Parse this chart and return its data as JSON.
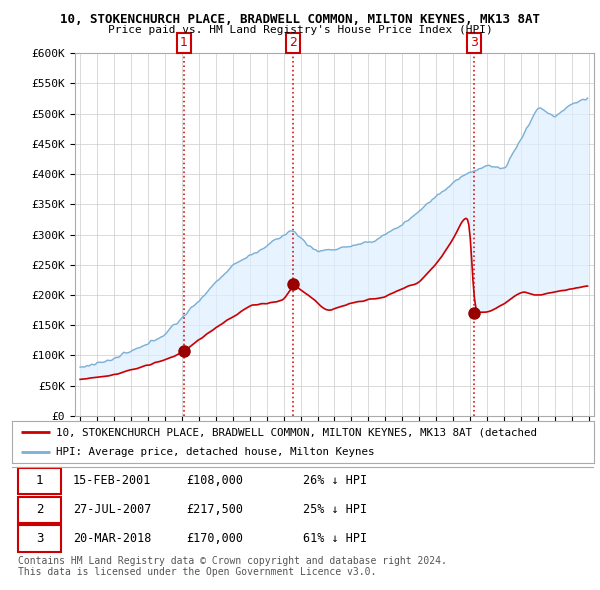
{
  "title_line1": "10, STOKENCHURCH PLACE, BRADWELL COMMON, MILTON KEYNES, MK13 8AT",
  "title_line2": "Price paid vs. HM Land Registry's House Price Index (HPI)",
  "ylim": [
    0,
    600000
  ],
  "yticks": [
    0,
    50000,
    100000,
    150000,
    200000,
    250000,
    300000,
    350000,
    400000,
    450000,
    500000,
    550000,
    600000
  ],
  "ytick_labels": [
    "£0",
    "£50K",
    "£100K",
    "£150K",
    "£200K",
    "£250K",
    "£300K",
    "£350K",
    "£400K",
    "£450K",
    "£500K",
    "£550K",
    "£600K"
  ],
  "sale_dates": [
    2001.12,
    2007.57,
    2018.22
  ],
  "sale_prices": [
    108000,
    217500,
    170000
  ],
  "sale_labels": [
    "1",
    "2",
    "3"
  ],
  "hpi_color": "#7bafd4",
  "sale_color": "#cc0000",
  "fill_color": "#ddeeff",
  "legend_sale_text": "10, STOKENCHURCH PLACE, BRADWELL COMMON, MILTON KEYNES, MK13 8AT (detached",
  "legend_hpi_text": "HPI: Average price, detached house, Milton Keynes",
  "table_rows": [
    [
      "1",
      "15-FEB-2001",
      "£108,000",
      "26% ↓ HPI"
    ],
    [
      "2",
      "27-JUL-2007",
      "£217,500",
      "25% ↓ HPI"
    ],
    [
      "3",
      "20-MAR-2018",
      "£170,000",
      "61% ↓ HPI"
    ]
  ],
  "footnote": "Contains HM Land Registry data © Crown copyright and database right 2024.\nThis data is licensed under the Open Government Licence v3.0.",
  "background_color": "#ffffff",
  "grid_color": "#cccccc",
  "xlim_left": 1994.7,
  "xlim_right": 2025.3
}
